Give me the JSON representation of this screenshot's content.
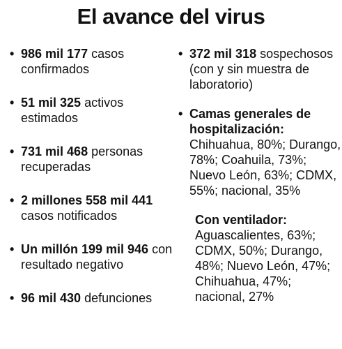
{
  "title": "El avance del virus",
  "left_items": [
    {
      "bullet": "•",
      "bold": "986 mil 177",
      "rest": " casos confirmados"
    },
    {
      "bullet": "•",
      "bold": "51 mil 325",
      "rest": " activos estimados"
    },
    {
      "bullet": "•",
      "bold": "731 mil 468",
      "rest": " personas recuperadas"
    },
    {
      "bullet": "•",
      "bold": "2 millones 558 mil 441",
      "rest": " casos notificados"
    },
    {
      "bullet": "•",
      "bold": "Un millón 199 mil 946",
      "rest": " con resultado negativo"
    },
    {
      "bullet": "•",
      "bold": "96 mil 430",
      "rest": " defunciones"
    }
  ],
  "right_items": [
    {
      "bullet": "•",
      "bold": "372 mil 318",
      "rest": " sospechosos (con y sin muestra de laboratorio)"
    },
    {
      "bullet": "•",
      "bold": "Camas generales de hospitalización:",
      "rest": " Chihuahua, 80%; Durango, 78%; Coahuila, 73%; Nuevo León, 63%; CDMX, 55%; nacional, 35%"
    },
    {
      "bullet": "",
      "bold": "Con ventilador:",
      "rest": " Aguascalientes, 63%; CDMX, 50%; Durango, 48%; Nuevo León, 47%; Chihuahua, 47%; nacional, 27%"
    }
  ]
}
